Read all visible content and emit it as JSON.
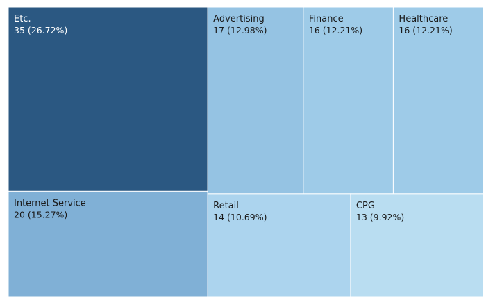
{
  "chart_data": {
    "type": "treemap",
    "title": "",
    "nodes": [
      {
        "name": "Etc.",
        "value": 35,
        "percent": "26.72%",
        "display": "35 (26.72%)",
        "color": "#2b5882",
        "text_color": "#ffffff"
      },
      {
        "name": "Internet Service",
        "value": 20,
        "percent": "15.27%",
        "display": "20 (15.27%)",
        "color": "#80b0d6",
        "text_color": "#1a1a1a"
      },
      {
        "name": "Advertising",
        "value": 17,
        "percent": "12.98%",
        "display": "17 (12.98%)",
        "color": "#95c3e3",
        "text_color": "#1a1a1a"
      },
      {
        "name": "Finance",
        "value": 16,
        "percent": "12.21%",
        "display": "16 (12.21%)",
        "color": "#9ecbe8",
        "text_color": "#1a1a1a"
      },
      {
        "name": "Healthcare",
        "value": 16,
        "percent": "12.21%",
        "display": "16 (12.21%)",
        "color": "#9ecbe8",
        "text_color": "#1a1a1a"
      },
      {
        "name": "Retail",
        "value": 14,
        "percent": "10.69%",
        "display": "14 (10.69%)",
        "color": "#acd4ee",
        "text_color": "#1a1a1a"
      },
      {
        "name": "CPG",
        "value": 13,
        "percent": "9.92%",
        "display": "13 (9.92%)",
        "color": "#b9ddf1",
        "text_color": "#1a1a1a"
      }
    ]
  }
}
